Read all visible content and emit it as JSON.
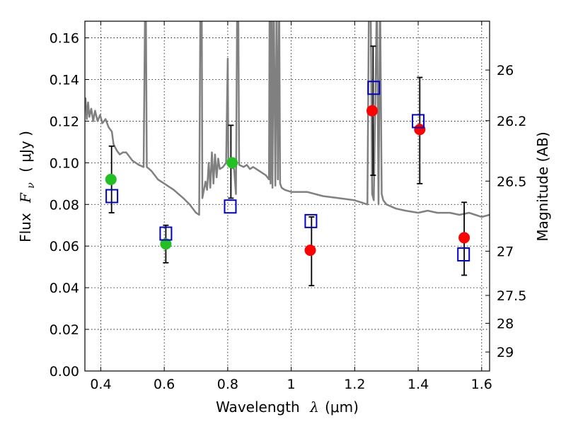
{
  "chart_data": {
    "type": "scatter",
    "xlabel": {
      "prefix": "Wavelength",
      "symbol": "λ",
      "unit": "(μm)"
    },
    "ylabel": {
      "prefix": "Flux",
      "symbol": "F",
      "subscript": "ν",
      "unit": "( μJy )"
    },
    "y2label": "Magnitude (AB)",
    "xlim": [
      0.35,
      1.625
    ],
    "ylim": [
      0.0,
      0.168
    ],
    "grid": true,
    "x_ticks": [
      {
        "value": 0.4,
        "label": "0.4"
      },
      {
        "value": 0.6,
        "label": "0.6"
      },
      {
        "value": 0.8,
        "label": "0.8"
      },
      {
        "value": 1.0,
        "label": "1"
      },
      {
        "value": 1.2,
        "label": "1.2"
      },
      {
        "value": 1.4,
        "label": "1.4"
      },
      {
        "value": 1.6,
        "label": "1.6"
      }
    ],
    "y_ticks": [
      {
        "value": 0.0,
        "label": "0.00"
      },
      {
        "value": 0.02,
        "label": "0.02"
      },
      {
        "value": 0.04,
        "label": "0.04"
      },
      {
        "value": 0.06,
        "label": "0.06"
      },
      {
        "value": 0.08,
        "label": "0.08"
      },
      {
        "value": 0.1,
        "label": "0.10"
      },
      {
        "value": 0.12,
        "label": "0.12"
      },
      {
        "value": 0.14,
        "label": "0.14"
      },
      {
        "value": 0.16,
        "label": "0.16"
      }
    ],
    "y2_ticks": [
      {
        "value": 26.0,
        "label": "26"
      },
      {
        "value": 26.2,
        "label": "26.2"
      },
      {
        "value": 26.5,
        "label": "26.5"
      },
      {
        "value": 27.0,
        "label": "27"
      },
      {
        "value": 27.5,
        "label": "27.5"
      },
      {
        "value": 28.0,
        "label": "28"
      },
      {
        "value": 29.0,
        "label": "29"
      }
    ],
    "magnitude_zero_point": 23.9,
    "series": [
      {
        "kind": "line",
        "color": "#808080",
        "points": [
          [
            0.35,
            0.128
          ],
          [
            0.352,
            0.131
          ],
          [
            0.356,
            0.121
          ],
          [
            0.36,
            0.129
          ],
          [
            0.364,
            0.122
          ],
          [
            0.37,
            0.126
          ],
          [
            0.376,
            0.12
          ],
          [
            0.382,
            0.125
          ],
          [
            0.39,
            0.12
          ],
          [
            0.398,
            0.123
          ],
          [
            0.405,
            0.119
          ],
          [
            0.415,
            0.121
          ],
          [
            0.425,
            0.117
          ],
          [
            0.435,
            0.115
          ],
          [
            0.44,
            0.109
          ],
          [
            0.45,
            0.106
          ],
          [
            0.46,
            0.104
          ],
          [
            0.47,
            0.105
          ],
          [
            0.48,
            0.105
          ],
          [
            0.49,
            0.103
          ],
          [
            0.5,
            0.101
          ],
          [
            0.52,
            0.099
          ],
          [
            0.535,
            0.098
          ],
          [
            0.54,
            0.18
          ],
          [
            0.542,
            0.18
          ],
          [
            0.545,
            0.098
          ],
          [
            0.56,
            0.096
          ],
          [
            0.58,
            0.092
          ],
          [
            0.6,
            0.09
          ],
          [
            0.63,
            0.087
          ],
          [
            0.66,
            0.083
          ],
          [
            0.68,
            0.08
          ],
          [
            0.7,
            0.076
          ],
          [
            0.71,
            0.075
          ],
          [
            0.714,
            0.18
          ],
          [
            0.718,
            0.18
          ],
          [
            0.72,
            0.083
          ],
          [
            0.73,
            0.091
          ],
          [
            0.735,
            0.087
          ],
          [
            0.74,
            0.1
          ],
          [
            0.745,
            0.088
          ],
          [
            0.75,
            0.105
          ],
          [
            0.755,
            0.09
          ],
          [
            0.76,
            0.104
          ],
          [
            0.765,
            0.093
          ],
          [
            0.77,
            0.102
          ],
          [
            0.775,
            0.097
          ],
          [
            0.785,
            0.098
          ],
          [
            0.795,
            0.1
          ],
          [
            0.8,
            0.15
          ],
          [
            0.802,
            0.099
          ],
          [
            0.81,
            0.098
          ],
          [
            0.82,
            0.097
          ],
          [
            0.826,
            0.085
          ],
          [
            0.83,
            0.18
          ],
          [
            0.833,
            0.18
          ],
          [
            0.836,
            0.099
          ],
          [
            0.85,
            0.098
          ],
          [
            0.86,
            0.099
          ],
          [
            0.87,
            0.097
          ],
          [
            0.88,
            0.098
          ],
          [
            0.9,
            0.096
          ],
          [
            0.92,
            0.094
          ],
          [
            0.93,
            0.092
          ],
          [
            0.932,
            0.18
          ],
          [
            0.935,
            0.09
          ],
          [
            0.938,
            0.18
          ],
          [
            0.941,
            0.088
          ],
          [
            0.945,
            0.18
          ],
          [
            0.95,
            0.089
          ],
          [
            0.954,
            0.18
          ],
          [
            0.958,
            0.092
          ],
          [
            0.962,
            0.18
          ],
          [
            0.965,
            0.09
          ],
          [
            0.97,
            0.088
          ],
          [
            0.98,
            0.087
          ],
          [
            1.0,
            0.086
          ],
          [
            1.05,
            0.086
          ],
          [
            1.1,
            0.084
          ],
          [
            1.15,
            0.083
          ],
          [
            1.2,
            0.082
          ],
          [
            1.24,
            0.08
          ],
          [
            1.245,
            0.18
          ],
          [
            1.25,
            0.18
          ],
          [
            1.255,
            0.085
          ],
          [
            1.26,
            0.082
          ],
          [
            1.27,
            0.18
          ],
          [
            1.275,
            0.08
          ],
          [
            1.28,
            0.18
          ],
          [
            1.285,
            0.085
          ],
          [
            1.29,
            0.082
          ],
          [
            1.3,
            0.08
          ],
          [
            1.33,
            0.078
          ],
          [
            1.36,
            0.077
          ],
          [
            1.4,
            0.076
          ],
          [
            1.43,
            0.077
          ],
          [
            1.46,
            0.076
          ],
          [
            1.5,
            0.076
          ],
          [
            1.53,
            0.075
          ],
          [
            1.56,
            0.076
          ],
          [
            1.58,
            0.075
          ],
          [
            1.6,
            0.074
          ],
          [
            1.625,
            0.075
          ]
        ]
      },
      {
        "kind": "scatter",
        "marker": "circle",
        "color": "#22c022",
        "points": [
          [
            0.432,
            0.092
          ],
          [
            0.605,
            0.061
          ],
          [
            0.814,
            0.1
          ]
        ]
      },
      {
        "kind": "scatter",
        "marker": "circle",
        "color": "#ff0000",
        "points": [
          [
            1.06,
            0.058
          ],
          [
            1.255,
            0.125
          ],
          [
            1.405,
            0.116
          ],
          [
            1.545,
            0.064
          ]
        ]
      },
      {
        "kind": "scatter",
        "marker": "open-square",
        "color": "#0000c8",
        "points": [
          [
            0.435,
            0.084
          ],
          [
            0.605,
            0.066
          ],
          [
            0.808,
            0.079
          ],
          [
            1.062,
            0.072
          ],
          [
            1.26,
            0.136
          ],
          [
            1.4,
            0.12
          ],
          [
            1.543,
            0.056
          ]
        ]
      },
      {
        "kind": "errorbar",
        "color": "#000000",
        "bars": [
          {
            "x": 0.434,
            "lo": 0.076,
            "hi": 0.108
          },
          {
            "x": 0.605,
            "lo": 0.052,
            "hi": 0.07
          },
          {
            "x": 0.81,
            "lo": 0.083,
            "hi": 0.118
          },
          {
            "x": 1.064,
            "lo": 0.041,
            "hi": 0.074
          },
          {
            "x": 1.258,
            "lo": 0.094,
            "hi": 0.156
          },
          {
            "x": 1.405,
            "lo": 0.09,
            "hi": 0.141
          },
          {
            "x": 1.545,
            "lo": 0.046,
            "hi": 0.081
          }
        ]
      }
    ]
  }
}
